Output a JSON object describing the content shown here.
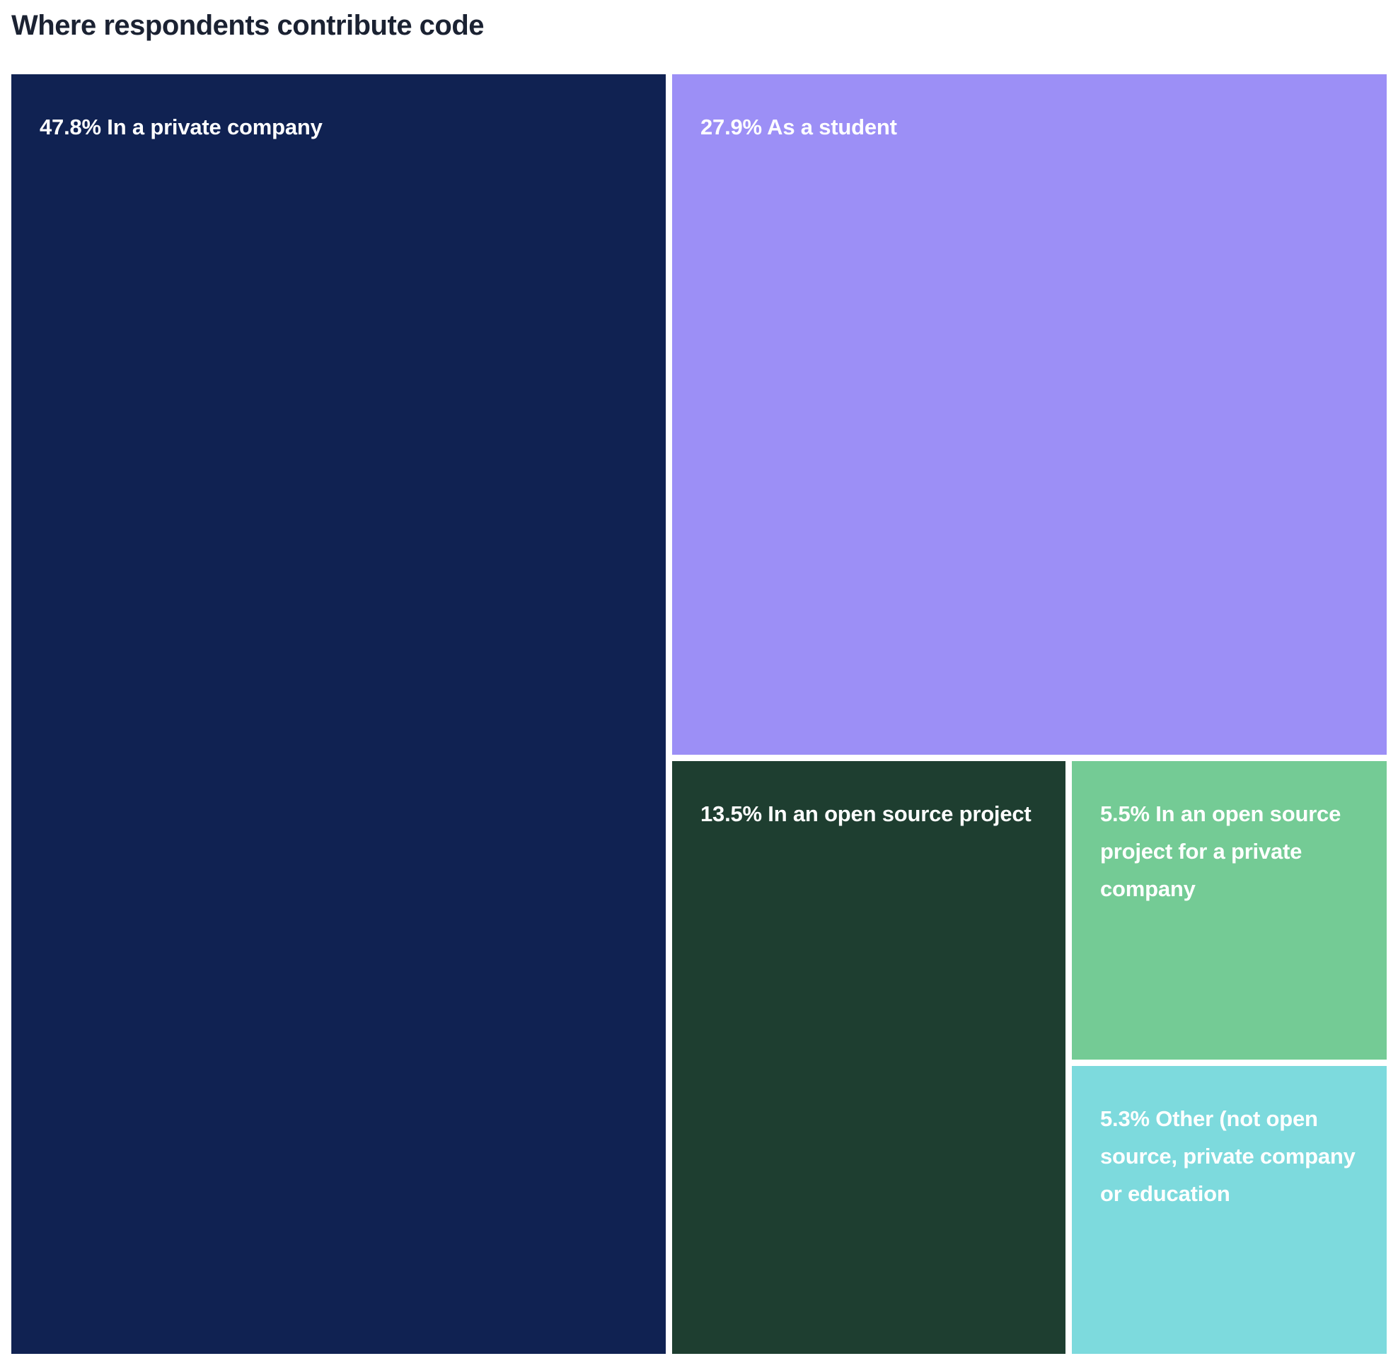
{
  "title": "Where respondents contribute code",
  "chart_data": {
    "type": "treemap",
    "title": "Where respondents contribute code",
    "unit": "%",
    "items": [
      {
        "label": "In a private company",
        "value": 47.8,
        "display": "47.8% In a private company",
        "color": "#102252"
      },
      {
        "label": "As a student",
        "value": 27.9,
        "display": "27.9% As a student",
        "color": "#9c8ff6"
      },
      {
        "label": "In an open source project",
        "value": 13.5,
        "display": "13.5% In an open source project",
        "color": "#1e3e30"
      },
      {
        "label": "In an open source project for a private company",
        "value": 5.5,
        "display": "5.5% In an open source project for a private company",
        "color": "#74cb95"
      },
      {
        "label": "Other (not open source, private company or education",
        "value": 5.3,
        "display": "5.3% Other (not open source, private company or education",
        "color": "#7ddadd"
      }
    ]
  }
}
